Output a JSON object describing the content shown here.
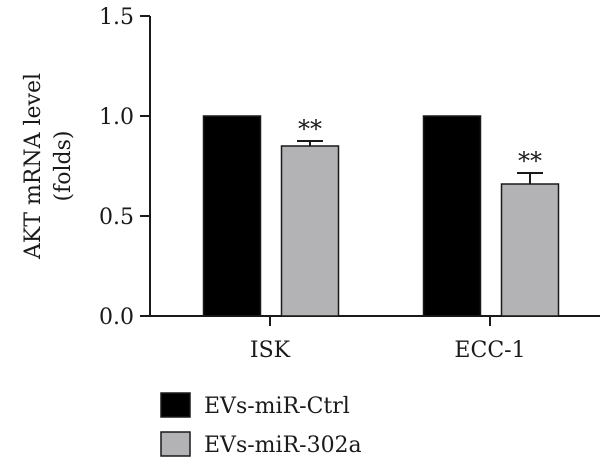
{
  "chart_data": {
    "type": "bar",
    "ylabel_lines": [
      "AKT mRNA level",
      "(folds)"
    ],
    "xlabel": "",
    "ylim": [
      0,
      1.5
    ],
    "yticks": [
      {
        "value": 0.0,
        "label": "0.0"
      },
      {
        "value": 0.5,
        "label": "0.5"
      },
      {
        "value": 1.0,
        "label": "1.0"
      },
      {
        "value": 1.5,
        "label": "1.5"
      }
    ],
    "categories": [
      "ISK",
      "ECC-1"
    ],
    "series": [
      {
        "name": "EVs-miR-Ctrl",
        "color": "#000000",
        "values": [
          1.0,
          1.0
        ],
        "errors": [
          0,
          0
        ],
        "annotations": [
          "",
          ""
        ]
      },
      {
        "name": "EVs-miR-302a",
        "color": "#b3b3b5",
        "values": [
          0.85,
          0.66
        ],
        "errors": [
          0.025,
          0.055
        ],
        "annotations": [
          "**",
          "**"
        ]
      }
    ],
    "legend_position": "bottom-left",
    "grid": false
  }
}
